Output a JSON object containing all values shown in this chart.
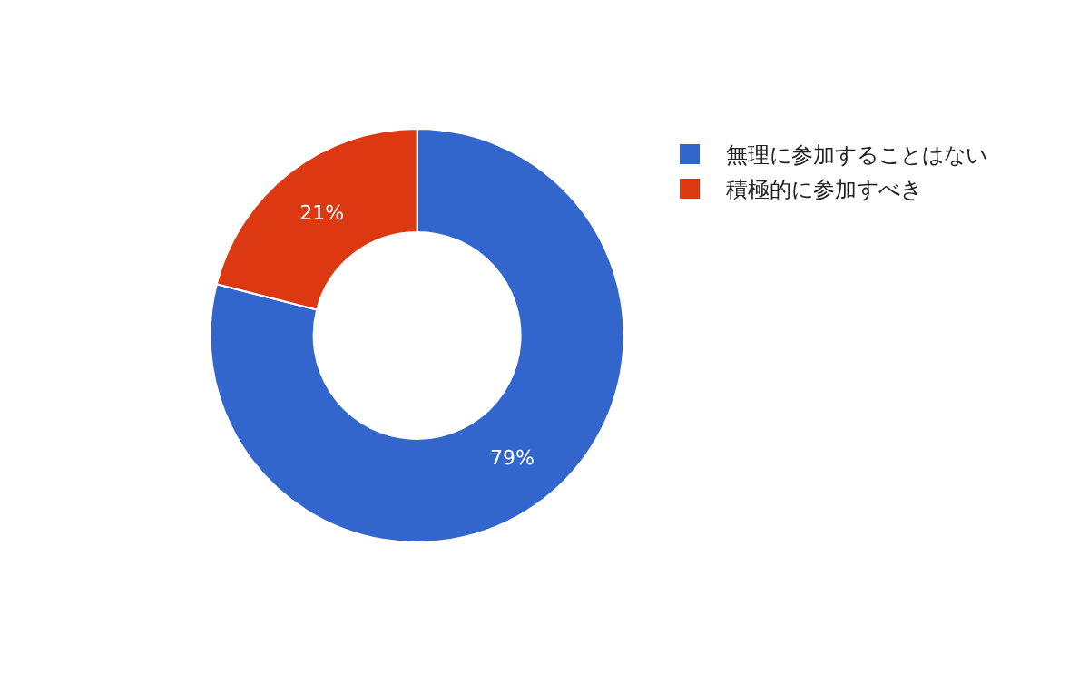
{
  "chart_data": {
    "type": "donut",
    "categories": [
      "無理に参加することはない",
      "積極的に参加すべき"
    ],
    "values": [
      79,
      21
    ],
    "value_labels": [
      "79%",
      "21%"
    ],
    "colors": [
      "#3366cc",
      "#dc3912"
    ],
    "legend": "top right"
  }
}
